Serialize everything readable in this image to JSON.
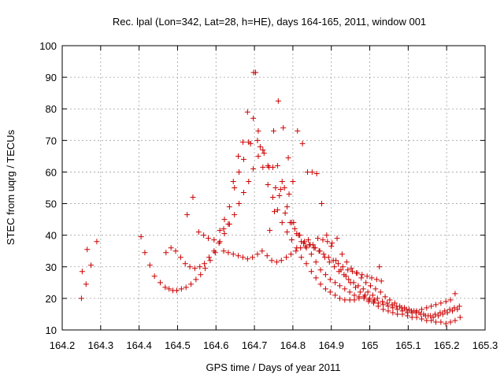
{
  "chart_data": {
    "type": "scatter",
    "title": "Rec. lpal (Lon=342, Lat=28, h=HE), days 164-165, 2011, window 001",
    "xlabel": "GPS time / Days of year 2011",
    "ylabel": "STEC from uqrg / TECUs",
    "xlim": [
      164.2,
      165.3
    ],
    "ylim": [
      10,
      100
    ],
    "xticks": [
      "164.2",
      "164.3",
      "164.4",
      "164.5",
      "164.6",
      "164.7",
      "164.8",
      "164.9",
      "165",
      "165.1",
      "165.2",
      "165.3"
    ],
    "yticks": [
      "10",
      "20",
      "30",
      "40",
      "50",
      "60",
      "70",
      "80",
      "90",
      "100"
    ],
    "grid": true,
    "marker_color": "#cc0000",
    "x": [
      164.25,
      164.252,
      164.262,
      164.265,
      164.275,
      164.29,
      164.405,
      164.415,
      164.428,
      164.44,
      164.455,
      164.468,
      164.478,
      164.488,
      164.498,
      164.51,
      164.522,
      164.535,
      164.548,
      164.56,
      164.572,
      164.585,
      164.598,
      164.61,
      164.622,
      164.635,
      164.648,
      164.66,
      164.672,
      164.685,
      164.697,
      164.71,
      164.722,
      164.735,
      164.748,
      164.76,
      164.772,
      164.785,
      164.797,
      164.81,
      164.822,
      164.835,
      164.848,
      164.86,
      164.872,
      164.885,
      164.897,
      164.91,
      164.922,
      164.935,
      164.948,
      164.96,
      164.972,
      164.985,
      164.997,
      165.01,
      165.022,
      165.035,
      165.048,
      165.06,
      165.072,
      165.085,
      165.098,
      165.11,
      165.122,
      165.135,
      165.148,
      165.16,
      165.172,
      165.185,
      165.198,
      165.21,
      165.222,
      165.235,
      164.47,
      164.483,
      164.495,
      164.508,
      164.52,
      164.532,
      164.545,
      164.558,
      164.57,
      164.582,
      164.595,
      164.608,
      164.62,
      164.632,
      164.645,
      164.658,
      164.67,
      164.682,
      164.695,
      164.708,
      164.72,
      164.733,
      164.745,
      164.758,
      164.77,
      164.783,
      164.795,
      164.808,
      164.82,
      164.833,
      164.845,
      164.858,
      164.87,
      164.883,
      164.895,
      164.908,
      164.92,
      164.933,
      164.945,
      164.958,
      164.97,
      164.983,
      164.995,
      165.008,
      165.02,
      165.033,
      165.045,
      165.058,
      165.07,
      165.083,
      165.095,
      165.108,
      165.12,
      165.133,
      165.145,
      165.158,
      165.17,
      165.183,
      165.195,
      165.208,
      165.22,
      165.233,
      164.525,
      164.54,
      164.555,
      164.568,
      164.58,
      164.595,
      164.61,
      164.622,
      164.635,
      164.648,
      164.66,
      164.672,
      164.685,
      164.697,
      164.71,
      164.722,
      164.735,
      164.748,
      164.76,
      164.772,
      164.785,
      164.797,
      164.81,
      164.822,
      164.835,
      164.848,
      164.86,
      164.872,
      164.885,
      164.897,
      164.91,
      164.922,
      164.935,
      164.948,
      164.96,
      164.972,
      164.985,
      164.997,
      165.01,
      165.022,
      165.035,
      165.048,
      165.06,
      165.072,
      165.085,
      165.098,
      165.11,
      165.122,
      165.135,
      165.148,
      165.16,
      165.172,
      165.185,
      165.198,
      165.21,
      165.222,
      164.62,
      164.632,
      164.645,
      164.658,
      164.67,
      164.682,
      164.69,
      164.698,
      164.703,
      164.708,
      164.715,
      164.725,
      164.738,
      164.75,
      164.762,
      164.775,
      164.788,
      164.8,
      164.812,
      164.825,
      164.838,
      164.85,
      164.862,
      164.875,
      164.888,
      164.9,
      164.912,
      164.925,
      164.938,
      164.95,
      164.963,
      164.975,
      164.988,
      165.0,
      165.012,
      165.025,
      164.74,
      164.752,
      164.765,
      164.778,
      164.79,
      164.802,
      164.815,
      164.828,
      164.84,
      164.852,
      164.865,
      164.878,
      164.89,
      164.902,
      164.915,
      164.928,
      164.94,
      164.952,
      164.965,
      164.978,
      164.99,
      165.002,
      165.015,
      165.028,
      165.04,
      165.052,
      165.065,
      165.078,
      165.09,
      165.102,
      165.115,
      165.128,
      165.14,
      165.152,
      165.165,
      165.178,
      165.19,
      165.202,
      165.215,
      165.228,
      164.755,
      164.768,
      164.78,
      164.793,
      164.805,
      164.818,
      164.83,
      164.843,
      164.855,
      164.868,
      164.88,
      164.893,
      164.905,
      164.918,
      164.93,
      164.943,
      164.955,
      164.968,
      164.98,
      164.993,
      165.005,
      165.018,
      165.03
    ],
    "y": [
      20,
      28.5,
      24.5,
      35.5,
      30.5,
      38,
      39.5,
      34.5,
      30.5,
      27,
      25,
      23.5,
      23,
      22.5,
      22.5,
      23,
      23.5,
      24.5,
      26,
      27.5,
      29.5,
      32,
      34.5,
      38,
      40.5,
      43.5,
      46.5,
      50,
      53.5,
      57,
      61,
      65,
      61.5,
      56,
      52,
      48,
      44,
      41,
      38.5,
      36,
      33,
      31,
      28.5,
      26.5,
      24.5,
      23,
      22,
      21,
      20,
      19.5,
      19.5,
      19.5,
      20,
      20.5,
      19,
      18.5,
      17.5,
      16.5,
      16,
      15.5,
      15,
      15,
      14.5,
      14,
      14,
      13.5,
      13,
      13,
      12.5,
      12.5,
      12,
      12.5,
      13,
      14,
      34.5,
      36,
      35,
      33,
      31,
      30,
      29.5,
      30,
      31,
      33,
      35,
      37.5,
      35,
      34.5,
      34,
      33.5,
      33,
      32.5,
      33,
      34,
      35,
      33.5,
      32,
      31.5,
      32,
      33,
      34,
      35,
      36,
      36.5,
      37,
      36,
      35,
      33,
      31.5,
      30,
      28.5,
      27.5,
      26,
      25,
      24,
      23,
      22,
      21,
      20,
      19,
      18.5,
      18,
      17.5,
      17,
      16.5,
      16,
      15.5,
      15,
      14.5,
      14.5,
      15,
      15.5,
      16,
      16.5,
      17,
      17.5,
      46.5,
      52,
      41,
      40,
      39,
      38.5,
      41.5,
      45,
      49,
      55,
      60,
      64,
      69.5,
      77,
      73,
      67,
      62,
      61.5,
      62,
      57,
      49,
      44,
      40.5,
      38,
      36,
      34,
      31.5,
      29,
      27.5,
      26,
      25,
      24,
      23,
      22,
      21,
      20.5,
      20,
      19.5,
      19,
      18.5,
      18,
      17.5,
      17,
      16.5,
      16,
      15.5,
      15.5,
      16,
      16.5,
      17,
      17.5,
      18,
      18.5,
      19,
      19.5,
      21.5,
      42,
      43.5,
      57,
      65,
      69.5,
      79,
      69,
      91.5,
      91.5,
      70,
      68,
      66,
      61.5,
      73,
      82.5,
      74,
      64.5,
      57,
      73,
      69,
      60,
      60,
      59.5,
      50,
      40,
      36.5,
      32,
      29,
      27,
      25,
      23.5,
      22,
      21,
      20,
      19.5,
      30,
      41.5,
      47.5,
      52.5,
      55,
      53,
      44,
      40,
      37.5,
      38.5,
      37,
      39,
      38.5,
      38,
      37.5,
      39,
      34,
      31.5,
      29.5,
      28,
      26.5,
      25,
      24,
      23,
      22,
      20.5,
      19.5,
      18.5,
      17.5,
      17,
      16.5,
      16,
      15.5,
      15,
      14.5,
      14,
      14.5,
      15,
      15.5,
      16,
      16.5,
      55,
      54.5,
      47,
      44,
      42,
      40,
      38,
      37,
      36,
      35,
      34,
      33,
      32,
      31,
      30,
      29,
      28.5,
      28,
      27.5,
      27,
      26.5,
      26,
      25.5
    ]
  }
}
